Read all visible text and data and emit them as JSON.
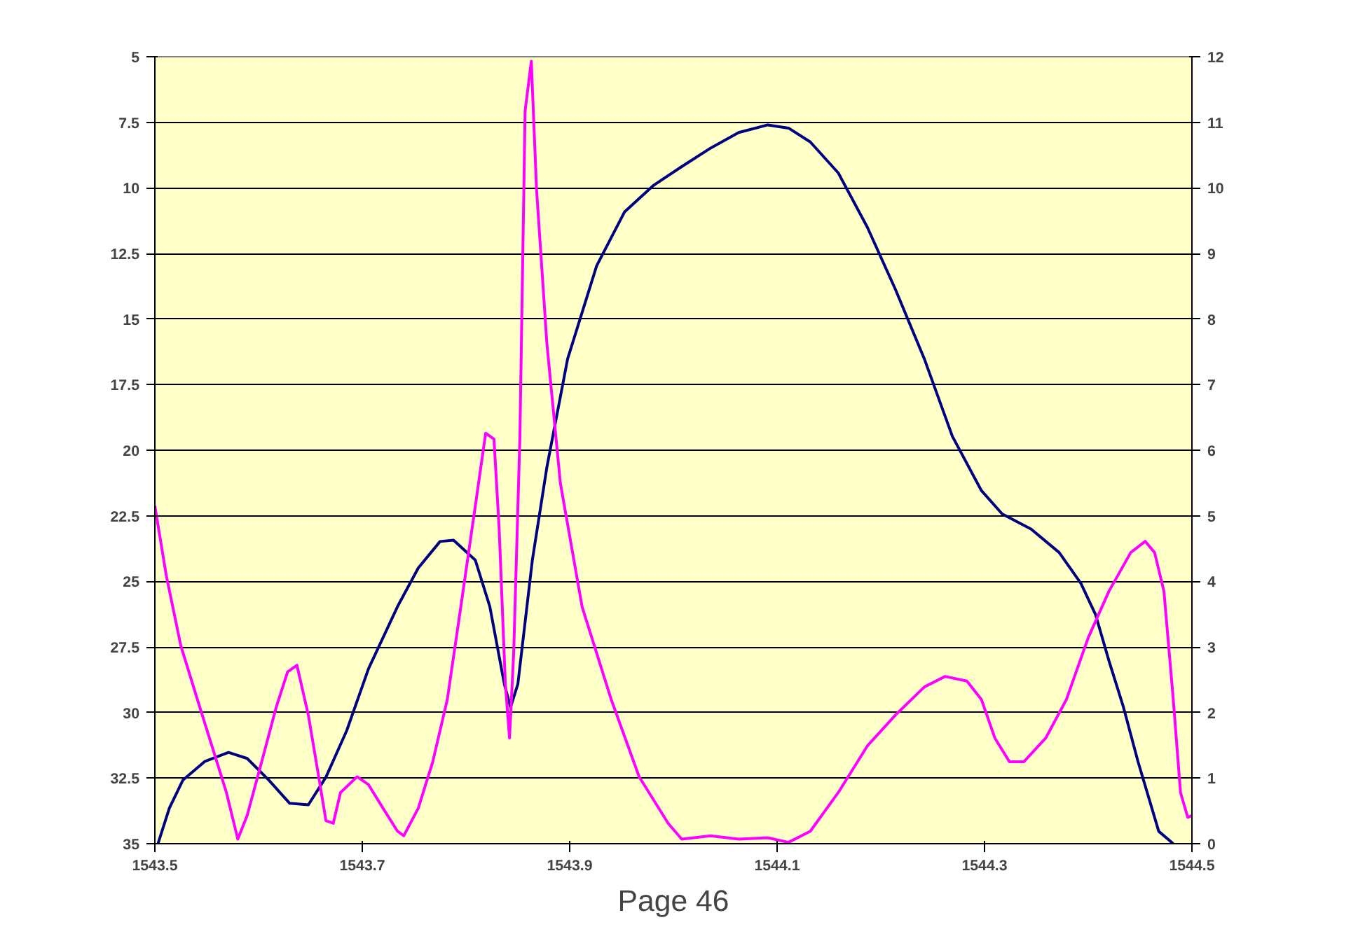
{
  "chart_data": {
    "type": "line",
    "xlim": [
      1543.5,
      1544.5
    ],
    "xticks": [
      1543.5,
      1543.7,
      1543.9,
      1544.1,
      1544.3,
      1544.5
    ],
    "ylim": [
      35,
      5
    ],
    "yticks": [
      5,
      7.5,
      10,
      12.5,
      15,
      17.5,
      20,
      22.5,
      25,
      27.5,
      30,
      32.5,
      35
    ],
    "y2lim": [
      0,
      12
    ],
    "y2ticks": [
      0,
      1,
      2,
      3,
      4,
      5,
      6,
      7,
      8,
      9,
      10,
      11,
      12
    ],
    "grid": "y",
    "annotations": [
      "Page 46"
    ],
    "series": [
      {
        "color": "#000080",
        "x": [
          1543.503,
          1543.514,
          1543.527,
          1543.548,
          1543.571,
          1543.589,
          1543.61,
          1543.63,
          1543.648,
          1543.665,
          1543.685,
          1543.706,
          1543.734,
          1543.754,
          1543.775,
          1543.788,
          1543.809,
          1543.823,
          1543.837,
          1543.843,
          1543.85,
          1543.864,
          1543.878,
          1543.898,
          1543.926,
          1543.953,
          1543.981,
          1544.008,
          1544.036,
          1544.063,
          1544.091,
          1544.111,
          1544.132,
          1544.159,
          1544.187,
          1544.214,
          1544.242,
          1544.269,
          1544.297,
          1544.317,
          1544.345,
          1544.372,
          1544.393,
          1544.407,
          1544.42,
          1544.434,
          1544.448,
          1544.468,
          1544.482
        ],
        "values": [
          35,
          33.64,
          32.58,
          31.87,
          31.52,
          31.75,
          32.58,
          33.46,
          33.52,
          32.46,
          30.69,
          28.33,
          25.96,
          24.49,
          23.48,
          23.43,
          24.19,
          25.96,
          28.92,
          29.8,
          28.92,
          24.19,
          20.65,
          16.52,
          12.97,
          10.91,
          9.9,
          9.19,
          8.48,
          7.89,
          7.6,
          7.72,
          8.25,
          9.43,
          11.5,
          13.86,
          16.52,
          19.47,
          21.54,
          22.43,
          23.01,
          23.9,
          25.08,
          26.26,
          28.03,
          29.8,
          31.87,
          34.53,
          35
        ]
      },
      {
        "color": "#ff00ff",
        "axis": "y2",
        "x": [
          1543.5,
          1543.511,
          1543.525,
          1543.541,
          1543.555,
          1543.569,
          1543.58,
          1543.589,
          1543.603,
          1543.617,
          1543.628,
          1543.637,
          1543.648,
          1543.658,
          1543.665,
          1543.672,
          1543.679,
          1543.695,
          1543.706,
          1543.72,
          1543.734,
          1543.74,
          1543.754,
          1543.768,
          1543.782,
          1543.795,
          1543.809,
          1543.819,
          1543.827,
          1543.832,
          1543.838,
          1543.842,
          1543.846,
          1543.852,
          1543.857,
          1543.863,
          1543.868,
          1543.878,
          1543.891,
          1543.912,
          1543.94,
          1543.967,
          1543.995,
          1544.008,
          1544.036,
          1544.063,
          1544.091,
          1544.111,
          1544.132,
          1544.159,
          1544.187,
          1544.214,
          1544.242,
          1544.262,
          1544.283,
          1544.297,
          1544.31,
          1544.324,
          1544.338,
          1544.359,
          1544.379,
          1544.4,
          1544.42,
          1544.441,
          1544.455,
          1544.464,
          1544.473,
          1544.482,
          1544.489,
          1544.496,
          1544.5
        ],
        "values": [
          5.15,
          4.09,
          3.02,
          2.2,
          1.49,
          0.78,
          0.07,
          0.43,
          1.25,
          2.08,
          2.62,
          2.72,
          1.96,
          1.02,
          0.35,
          0.31,
          0.78,
          1.02,
          0.9,
          0.54,
          0.19,
          0.12,
          0.54,
          1.25,
          2.2,
          3.61,
          5.15,
          6.26,
          6.17,
          4.8,
          2.43,
          1.61,
          2.91,
          6.21,
          11.17,
          11.93,
          9.99,
          7.63,
          5.5,
          3.61,
          2.2,
          1.02,
          0.31,
          0.07,
          0.12,
          0.07,
          0.09,
          0.02,
          0.19,
          0.78,
          1.49,
          1.96,
          2.39,
          2.55,
          2.48,
          2.2,
          1.61,
          1.25,
          1.25,
          1.61,
          2.2,
          3.14,
          3.85,
          4.44,
          4.61,
          4.44,
          3.85,
          2.2,
          0.78,
          0.4,
          0.43
        ]
      }
    ]
  }
}
